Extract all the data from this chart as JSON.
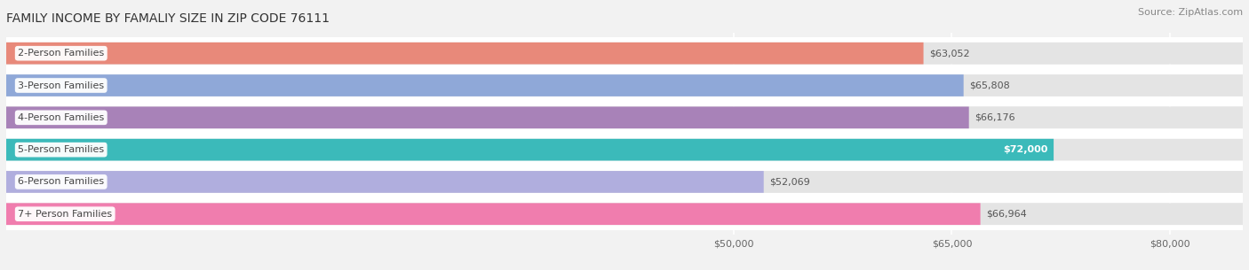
{
  "title": "FAMILY INCOME BY FAMALIY SIZE IN ZIP CODE 76111",
  "source": "Source: ZipAtlas.com",
  "categories": [
    "2-Person Families",
    "3-Person Families",
    "4-Person Families",
    "5-Person Families",
    "6-Person Families",
    "7+ Person Families"
  ],
  "values": [
    63052,
    65808,
    66176,
    72000,
    52069,
    66964
  ],
  "bar_colors": [
    "#E8897A",
    "#8FA8D8",
    "#A882B8",
    "#3BBABA",
    "#B0AEDE",
    "#F07DAE"
  ],
  "value_labels": [
    "$63,052",
    "$65,808",
    "$66,176",
    "$72,000",
    "$52,069",
    "$66,964"
  ],
  "value_inside": [
    false,
    false,
    false,
    true,
    false,
    false
  ],
  "xmin": 0,
  "xmax": 85000,
  "xticks": [
    50000,
    65000,
    80000
  ],
  "xtick_labels": [
    "$50,000",
    "$65,000",
    "$80,000"
  ],
  "bg_color": "#f2f2f2",
  "bar_bg_color": "#e4e4e4",
  "between_color": "#ffffff",
  "title_fontsize": 10,
  "source_fontsize": 8,
  "label_fontsize": 8,
  "value_fontsize": 8
}
